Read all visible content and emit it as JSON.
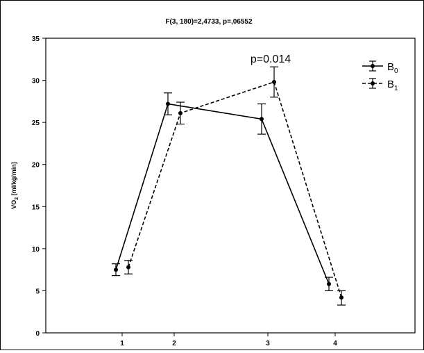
{
  "chart_data": {
    "type": "line",
    "title": "F(3, 180)=2,4733, p=,06552",
    "ylabel": "VO2 [ml/kg/min]",
    "xlabel": "",
    "categories": [
      "1",
      "2",
      "3",
      "4"
    ],
    "ylim": [
      0,
      35
    ],
    "yticks": [
      0,
      5,
      10,
      15,
      20,
      25,
      30,
      35
    ],
    "grid": false,
    "legend_position": "top-right",
    "annotation": {
      "text": "p=0.014",
      "category": "3"
    },
    "series": [
      {
        "name": "B0",
        "name_base": "B",
        "name_sub": "0",
        "line_style": "solid",
        "values": [
          7.5,
          27.2,
          25.4,
          5.8
        ],
        "error_low": [
          6.8,
          25.9,
          23.6,
          5.0
        ],
        "error_high": [
          8.2,
          28.5,
          27.2,
          6.6
        ]
      },
      {
        "name": "B1",
        "name_base": "B",
        "name_sub": "1",
        "line_style": "dashed",
        "values": [
          7.8,
          26.1,
          29.8,
          4.2
        ],
        "error_low": [
          7.0,
          24.8,
          28.0,
          3.3
        ],
        "error_high": [
          8.6,
          27.4,
          31.6,
          5.0
        ]
      }
    ]
  }
}
